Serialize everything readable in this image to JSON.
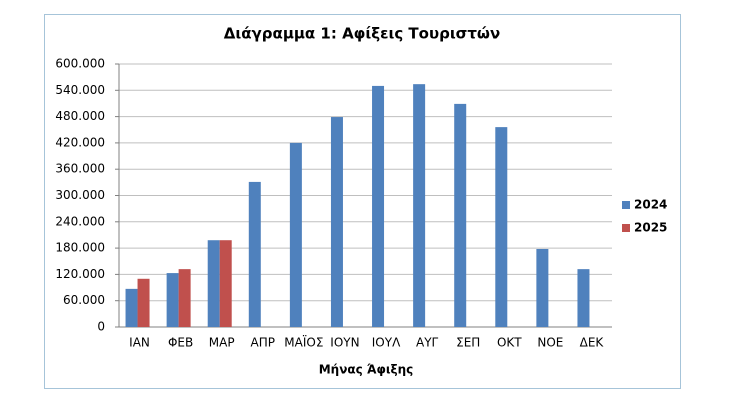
{
  "chart_data": {
    "type": "bar",
    "title": "Διάγραμμα 1: Αφίξεις Τουριστών",
    "x_label": "Μήνας Άφιξης",
    "categories": [
      "ΙΑΝ",
      "ΦΕΒ",
      "ΜΑΡ",
      "ΑΠΡ",
      "ΜΑΪΟΣ",
      "ΙΟΥΝ",
      "ΙΟΥΛ",
      "ΑΥΓ",
      "ΣΕΠ",
      "ΟΚΤ",
      "ΝΟΕ",
      "ΔΕΚ"
    ],
    "series": [
      {
        "name": "2024",
        "color": "#4f81bd",
        "values": [
          87000,
          123000,
          198000,
          331000,
          420000,
          479000,
          550000,
          554000,
          509000,
          456000,
          178000,
          132000
        ]
      },
      {
        "name": "2025",
        "color": "#c0504d",
        "values": [
          110000,
          132000,
          198000,
          null,
          null,
          null,
          null,
          null,
          null,
          null,
          null,
          null
        ]
      }
    ],
    "ylim": [
      0,
      600000
    ],
    "yticks": [
      0,
      {
        "value": 60000,
        "label": "60.000"
      },
      {
        "value": 120000,
        "label": "120.000"
      },
      {
        "value": 180000,
        "label": "180.000"
      },
      {
        "value": 240000,
        "label": "240.000"
      },
      {
        "value": 300000,
        "label": "300.000"
      },
      {
        "value": 360000,
        "label": "360.000"
      },
      {
        "value": 420000,
        "label": "420.000"
      },
      {
        "value": 480000,
        "label": "480.000"
      },
      {
        "value": 540000,
        "label": "540.000"
      },
      {
        "value": 600000,
        "label": "600.000"
      }
    ],
    "grid": true,
    "legend": "right"
  }
}
